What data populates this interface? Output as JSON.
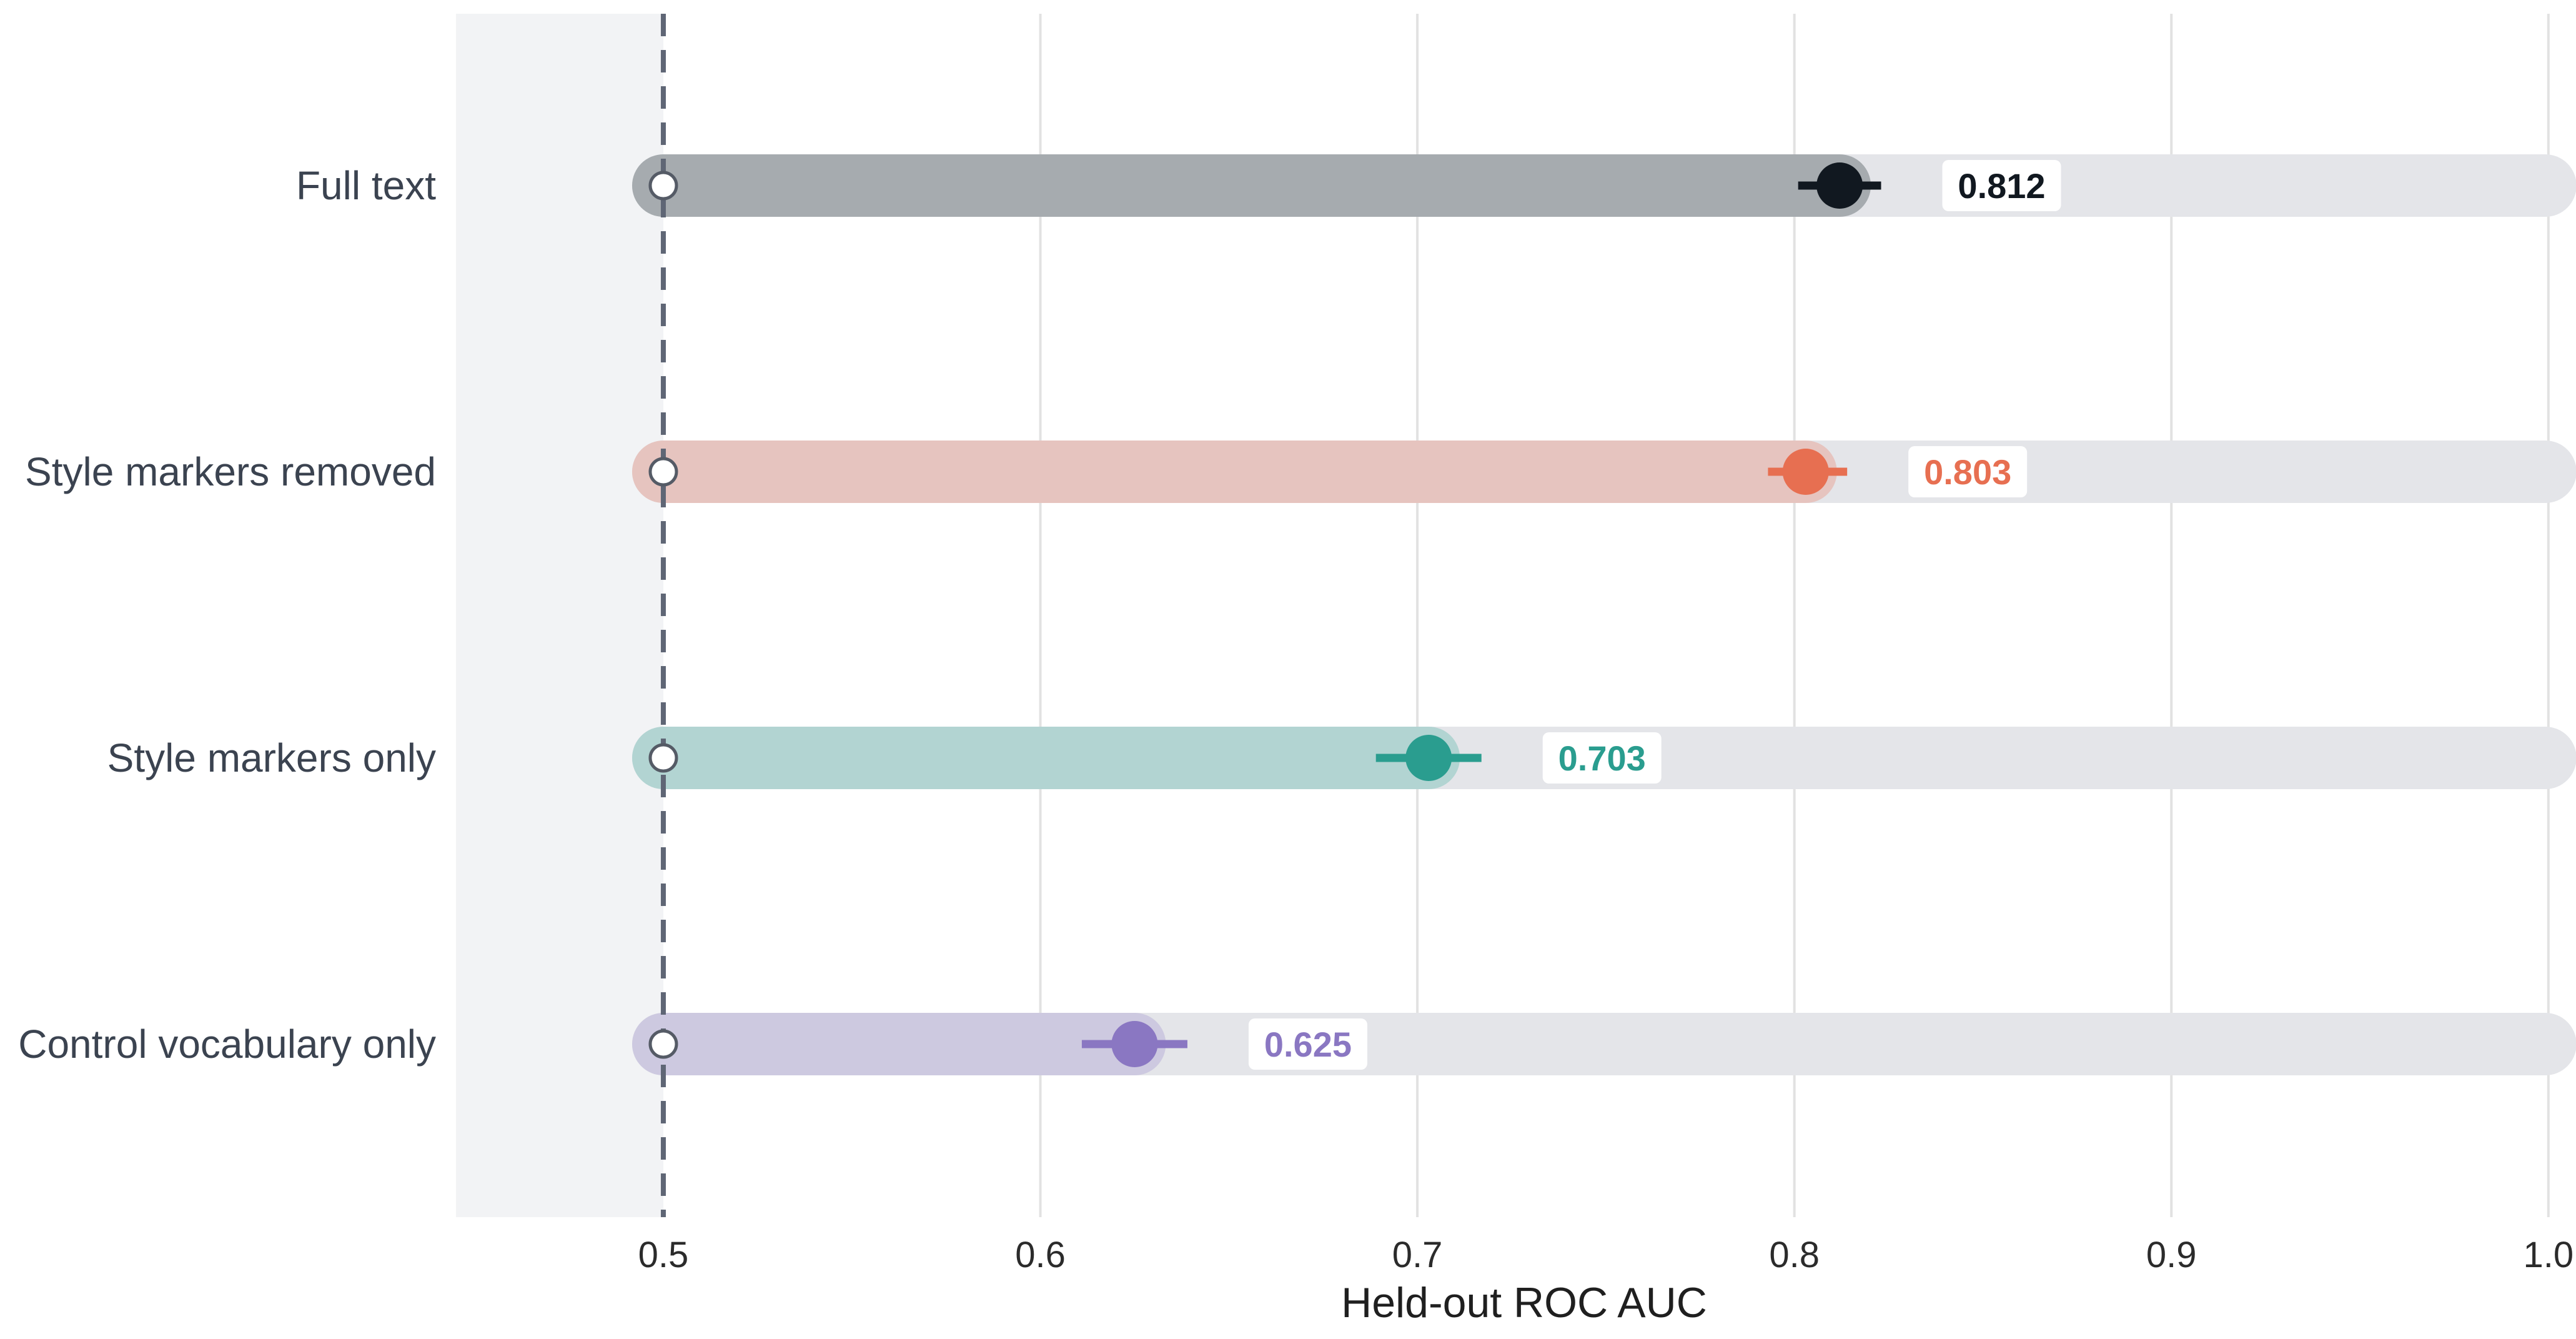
{
  "chart_data": {
    "type": "dot-bar",
    "xlabel": "Held-out ROC AUC",
    "xlim": [
      0.445,
      1.005
    ],
    "xticks": [
      0.5,
      0.6,
      0.7,
      0.8,
      0.9,
      1.0
    ],
    "xtick_labels": [
      "0.5",
      "0.6",
      "0.7",
      "0.8",
      "0.9",
      "1.0"
    ],
    "baseline": 0.5,
    "grid": "vertical",
    "categories": [
      "Full text",
      "Style markers removed",
      "Style markers only",
      "Control vocabulary only"
    ],
    "series": [
      {
        "category": "Full text",
        "value": 0.812,
        "ci": [
          0.801,
          0.823
        ],
        "label": "0.812",
        "color": "#111820",
        "bar_color": "#a6abaf"
      },
      {
        "category": "Style markers removed",
        "value": 0.803,
        "ci": [
          0.793,
          0.814
        ],
        "label": "0.803",
        "color": "#e76f51",
        "bar_color": "#e6c4bf"
      },
      {
        "category": "Style markers only",
        "value": 0.703,
        "ci": [
          0.689,
          0.717
        ],
        "label": "0.703",
        "color": "#2a9d8f",
        "bar_color": "#b2d4d2"
      },
      {
        "category": "Control vocabulary only",
        "value": 0.625,
        "ci": [
          0.611,
          0.639
        ],
        "label": "0.625",
        "color": "#8a77c2",
        "bar_color": "#cdc9e0"
      }
    ],
    "colors": {
      "track": "#e4e5e9",
      "left_shade": "#f2f3f5",
      "grid": "#e2e2e2",
      "baseline": "#5f6675",
      "text": "#3b4350",
      "axis_text": "#2b2b2b"
    }
  }
}
